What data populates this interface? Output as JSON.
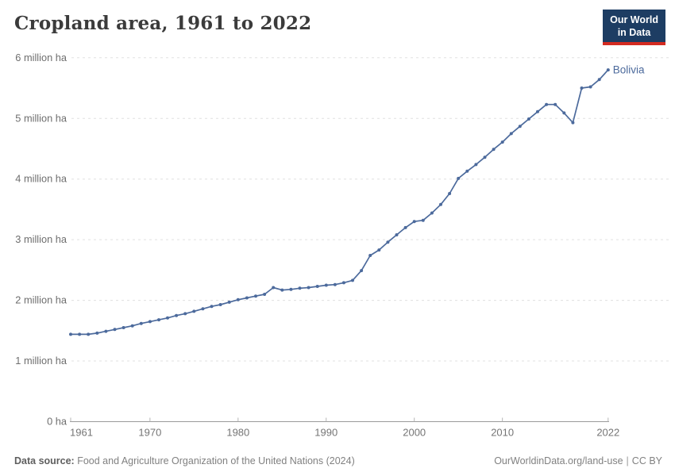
{
  "header": {
    "title": "Cropland area, 1961 to 2022",
    "logo": {
      "line1": "Our World",
      "line2": "in Data",
      "bg_color": "#1d3d63",
      "stripe_color": "#d42b21"
    }
  },
  "chart_data": {
    "type": "line",
    "title": "Cropland area, 1961 to 2022",
    "xlabel": "",
    "ylabel": "",
    "unit": "million ha",
    "ylim": [
      0,
      6
    ],
    "grid": "horizontal dashed",
    "legend_position": "end-of-line label",
    "line_color": "#4c6a9c",
    "yticks": [
      {
        "value": 6,
        "label": "6 million ha"
      },
      {
        "value": 5,
        "label": "5 million ha"
      },
      {
        "value": 4,
        "label": "4 million ha"
      },
      {
        "value": 3,
        "label": "3 million ha"
      },
      {
        "value": 2,
        "label": "2 million ha"
      },
      {
        "value": 1,
        "label": "1 million ha"
      },
      {
        "value": 0,
        "label": "0 ha"
      }
    ],
    "xticks": [
      1961,
      1970,
      1980,
      1990,
      2000,
      2010,
      2022
    ],
    "x": [
      1961,
      1962,
      1963,
      1964,
      1965,
      1966,
      1967,
      1968,
      1969,
      1970,
      1971,
      1972,
      1973,
      1974,
      1975,
      1976,
      1977,
      1978,
      1979,
      1980,
      1981,
      1982,
      1983,
      1984,
      1985,
      1986,
      1987,
      1988,
      1989,
      1990,
      1991,
      1992,
      1993,
      1994,
      1995,
      1996,
      1997,
      1998,
      1999,
      2000,
      2001,
      2002,
      2003,
      2004,
      2005,
      2006,
      2007,
      2008,
      2009,
      2010,
      2011,
      2012,
      2013,
      2014,
      2015,
      2016,
      2017,
      2018,
      2019,
      2020,
      2021,
      2022
    ],
    "series": [
      {
        "name": "Bolivia",
        "color": "#4c6a9c",
        "values": [
          1.44,
          1.44,
          1.44,
          1.46,
          1.49,
          1.52,
          1.55,
          1.58,
          1.62,
          1.65,
          1.68,
          1.71,
          1.75,
          1.78,
          1.82,
          1.86,
          1.9,
          1.93,
          1.97,
          2.01,
          2.04,
          2.07,
          2.1,
          2.21,
          2.17,
          2.18,
          2.2,
          2.21,
          2.23,
          2.25,
          2.26,
          2.29,
          2.33,
          2.49,
          2.74,
          2.83,
          2.96,
          3.08,
          3.2,
          3.3,
          3.32,
          3.44,
          3.58,
          3.76,
          4.01,
          4.13,
          4.24,
          4.36,
          4.49,
          4.61,
          4.75,
          4.87,
          4.99,
          5.11,
          5.23,
          5.23,
          5.09,
          4.93,
          5.5,
          5.52,
          5.64,
          5.8
        ]
      }
    ],
    "end_label": "Bolivia"
  },
  "footer": {
    "source_label": "Data source:",
    "source_value": "Food and Agriculture Organization of the United Nations (2024)",
    "link": "OurWorldinData.org/land-use",
    "separator": "|",
    "license": "CC BY"
  }
}
